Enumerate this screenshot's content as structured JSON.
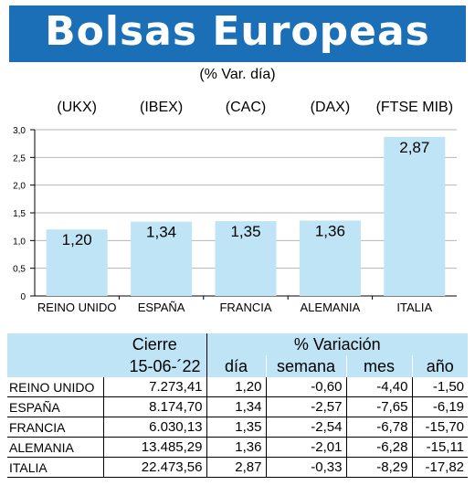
{
  "header": {
    "title": "Bolsas Europeas",
    "subtitle": "(% Var. día)"
  },
  "chart_data": {
    "type": "bar",
    "categories": [
      "REINO UNIDO",
      "ESPAÑA",
      "FRANCIA",
      "ALEMANIA",
      "ITALIA"
    ],
    "index_labels": [
      "(UKX)",
      "(IBEX)",
      "(CAC)",
      "(DAX)",
      "(FTSE MIB)"
    ],
    "values": [
      1.2,
      1.34,
      1.35,
      1.36,
      2.87
    ],
    "value_labels": [
      "1,20",
      "1,34",
      "1,35",
      "1,36",
      "2,87"
    ],
    "ylim": [
      0,
      3.0
    ],
    "yticks": [
      0,
      0.5,
      1.0,
      1.5,
      2.0,
      2.5,
      3.0
    ],
    "ytick_labels": [
      "0",
      "0,5",
      "1,0",
      "1,5",
      "2,0",
      "2,5",
      "3,0"
    ],
    "grid": true,
    "bar_color": "#bfe4f6",
    "title": "",
    "xlabel": "",
    "ylabel": ""
  },
  "table": {
    "group_headers": [
      "Cierre",
      "% Variación"
    ],
    "columns": [
      "15-06-´22",
      "día",
      "semana",
      "mes",
      "año"
    ],
    "rows": [
      {
        "name": "REINO UNIDO",
        "cierre": "7.273,41",
        "dia": "1,20",
        "semana": "-0,60",
        "mes": "-4,40",
        "ano": "-1,50"
      },
      {
        "name": "ESPAÑA",
        "cierre": "8.174,70",
        "dia": "1,34",
        "semana": "-2,57",
        "mes": "-7,65",
        "ano": "-6,19"
      },
      {
        "name": "FRANCIA",
        "cierre": "6.030,13",
        "dia": "1,35",
        "semana": "-2,54",
        "mes": "-6,78",
        "ano": "-15,70"
      },
      {
        "name": "ALEMANIA",
        "cierre": "13.485,29",
        "dia": "1,36",
        "semana": "-2,01",
        "mes": "-6,28",
        "ano": "-15,11"
      },
      {
        "name": "ITALIA",
        "cierre": "22.473,56",
        "dia": "2,87",
        "semana": "-0,33",
        "mes": "-8,29",
        "ano": "-17,82"
      }
    ]
  }
}
